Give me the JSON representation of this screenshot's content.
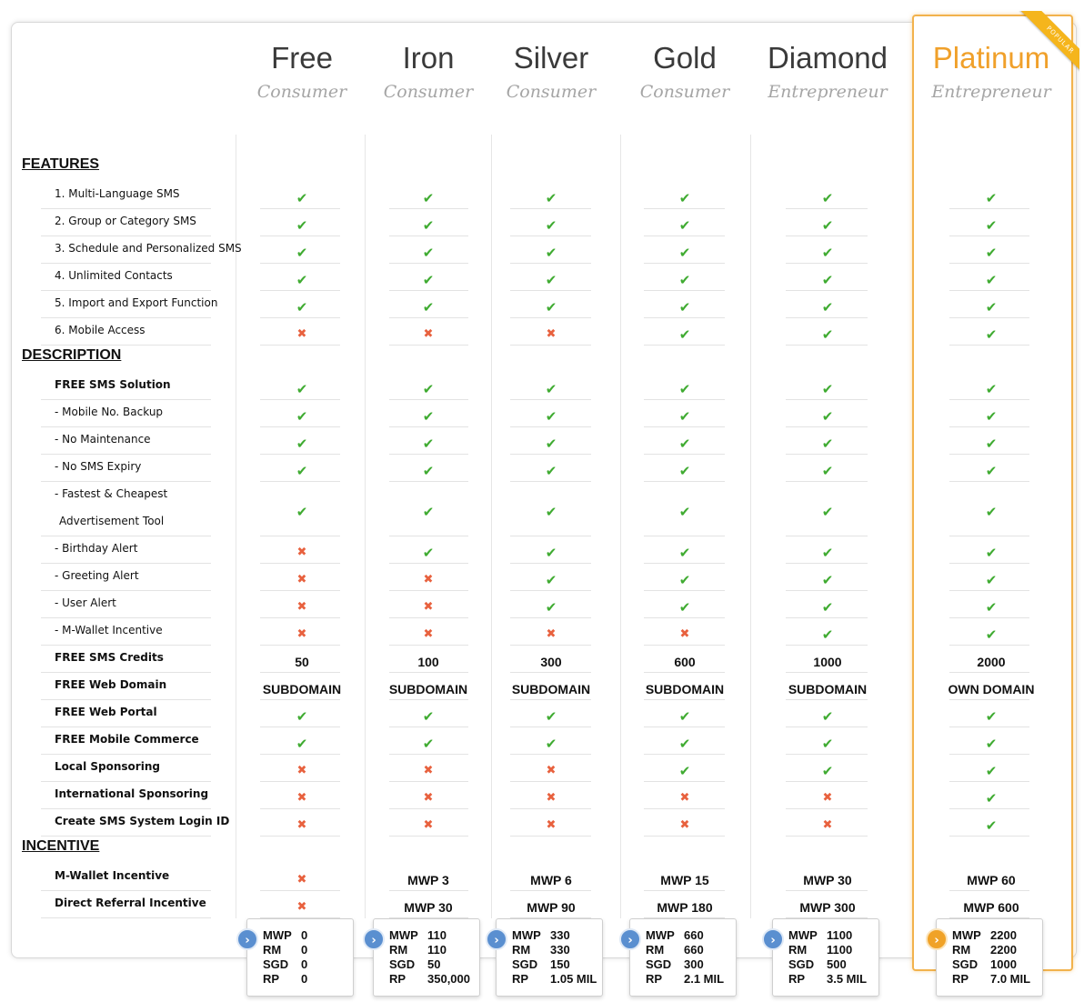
{
  "badge": "POPULAR",
  "plans": [
    {
      "name": "Free",
      "tier": "Consumer",
      "name_color": "#3a3a3a"
    },
    {
      "name": "Iron",
      "tier": "Consumer",
      "name_color": "#3a3a3a"
    },
    {
      "name": "Silver",
      "tier": "Consumer",
      "name_color": "#3a3a3a"
    },
    {
      "name": "Gold",
      "tier": "Consumer",
      "name_color": "#3a3a3a"
    },
    {
      "name": "Diamond",
      "tier": "Entrepreneur",
      "name_color": "#3a3a3a"
    },
    {
      "name": "Platinum",
      "tier": "Entrepreneur",
      "name_color": "#f0a02a"
    }
  ],
  "sections": [
    {
      "title": "FEATURES",
      "rows": [
        {
          "label": "1. Multi-Language SMS",
          "bold": false,
          "values": [
            "yes",
            "yes",
            "yes",
            "yes",
            "yes",
            "yes"
          ]
        },
        {
          "label": "2. Group or Category SMS",
          "bold": false,
          "values": [
            "yes",
            "yes",
            "yes",
            "yes",
            "yes",
            "yes"
          ]
        },
        {
          "label": "3. Schedule and Personalized SMS",
          "bold": false,
          "values": [
            "yes",
            "yes",
            "yes",
            "yes",
            "yes",
            "yes"
          ]
        },
        {
          "label": "4. Unlimited Contacts",
          "bold": false,
          "values": [
            "yes",
            "yes",
            "yes",
            "yes",
            "yes",
            "yes"
          ]
        },
        {
          "label": "5. Import and Export Function",
          "bold": false,
          "values": [
            "yes",
            "yes",
            "yes",
            "yes",
            "yes",
            "yes"
          ]
        },
        {
          "label": "6. Mobile Access",
          "bold": false,
          "values": [
            "no",
            "no",
            "no",
            "yes",
            "yes",
            "yes"
          ]
        }
      ]
    },
    {
      "title": "DESCRIPTION",
      "rows": [
        {
          "label": "FREE SMS Solution",
          "bold": true,
          "values": [
            "yes",
            "yes",
            "yes",
            "yes",
            "yes",
            "yes"
          ]
        },
        {
          "label": "- Mobile No. Backup",
          "bold": false,
          "values": [
            "yes",
            "yes",
            "yes",
            "yes",
            "yes",
            "yes"
          ]
        },
        {
          "label": "- No Maintenance",
          "bold": false,
          "values": [
            "yes",
            "yes",
            "yes",
            "yes",
            "yes",
            "yes"
          ]
        },
        {
          "label": "- No SMS Expiry",
          "bold": false,
          "values": [
            "yes",
            "yes",
            "yes",
            "yes",
            "yes",
            "yes"
          ]
        },
        {
          "label": "- Fastest & Cheapest",
          "label2": "Advertisement Tool",
          "bold": false,
          "values": [
            "yes",
            "yes",
            "yes",
            "yes",
            "yes",
            "yes"
          ]
        },
        {
          "label": "- Birthday Alert",
          "bold": false,
          "values": [
            "no",
            "yes",
            "yes",
            "yes",
            "yes",
            "yes"
          ]
        },
        {
          "label": "- Greeting Alert",
          "bold": false,
          "values": [
            "no",
            "no",
            "yes",
            "yes",
            "yes",
            "yes"
          ]
        },
        {
          "label": "- User Alert",
          "bold": false,
          "values": [
            "no",
            "no",
            "yes",
            "yes",
            "yes",
            "yes"
          ]
        },
        {
          "label": "- M-Wallet Incentive",
          "bold": false,
          "values": [
            "no",
            "no",
            "no",
            "no",
            "yes",
            "yes"
          ]
        },
        {
          "label": "FREE SMS Credits",
          "bold": true,
          "values": [
            "50",
            "100",
            "300",
            "600",
            "1000",
            "2000"
          ]
        },
        {
          "label": "FREE Web Domain",
          "bold": true,
          "values": [
            "SUBDOMAIN",
            "SUBDOMAIN",
            "SUBDOMAIN",
            "SUBDOMAIN",
            "SUBDOMAIN",
            "OWN DOMAIN"
          ]
        },
        {
          "label": "FREE Web Portal",
          "bold": true,
          "values": [
            "yes",
            "yes",
            "yes",
            "yes",
            "yes",
            "yes"
          ]
        },
        {
          "label": "FREE Mobile Commerce",
          "bold": true,
          "values": [
            "yes",
            "yes",
            "yes",
            "yes",
            "yes",
            "yes"
          ]
        },
        {
          "label": "Local Sponsoring",
          "bold": true,
          "values": [
            "no",
            "no",
            "no",
            "yes",
            "yes",
            "yes"
          ]
        },
        {
          "label": "International Sponsoring",
          "bold": true,
          "values": [
            "no",
            "no",
            "no",
            "no",
            "no",
            "yes"
          ]
        },
        {
          "label": "Create SMS System  Login ID",
          "bold": true,
          "values": [
            "no",
            "no",
            "no",
            "no",
            "no",
            "yes"
          ]
        }
      ]
    },
    {
      "title": "INCENTIVE",
      "rows": [
        {
          "label": "M-Wallet Incentive",
          "bold": true,
          "values": [
            "no",
            "MWP 3",
            "MWP 6",
            "MWP 15",
            "MWP 30",
            "MWP 60"
          ]
        },
        {
          "label": "Direct Referral Incentive",
          "bold": true,
          "values": [
            "no",
            "MWP 30",
            "MWP 90",
            "MWP 180",
            "MWP 300",
            "MWP 600"
          ]
        }
      ]
    }
  ],
  "prices": [
    [
      {
        "cur": "MWP",
        "val": "0"
      },
      {
        "cur": "RM",
        "val": "0"
      },
      {
        "cur": "SGD",
        "val": "0"
      },
      {
        "cur": "RP",
        "val": "0"
      }
    ],
    [
      {
        "cur": "MWP",
        "val": "110"
      },
      {
        "cur": "RM",
        "val": "110"
      },
      {
        "cur": "SGD",
        "val": "50"
      },
      {
        "cur": "RP",
        "val": "350,000"
      }
    ],
    [
      {
        "cur": "MWP",
        "val": "330"
      },
      {
        "cur": "RM",
        "val": "330"
      },
      {
        "cur": "SGD",
        "val": "150"
      },
      {
        "cur": "RP",
        "val": "1.05 MIL"
      }
    ],
    [
      {
        "cur": "MWP",
        "val": "660"
      },
      {
        "cur": "RM",
        "val": "660"
      },
      {
        "cur": "SGD",
        "val": "300"
      },
      {
        "cur": "RP",
        "val": "2.1 MIL"
      }
    ],
    [
      {
        "cur": "MWP",
        "val": "1100"
      },
      {
        "cur": "RM",
        "val": "1100"
      },
      {
        "cur": "SGD",
        "val": "500"
      },
      {
        "cur": "RP",
        "val": "3.5 MIL"
      }
    ],
    [
      {
        "cur": "MWP",
        "val": "2200"
      },
      {
        "cur": "RM",
        "val": "2200"
      },
      {
        "cur": "SGD",
        "val": "1000"
      },
      {
        "cur": "RP",
        "val": "7.0 MIL"
      }
    ]
  ],
  "icons": {
    "yes": "check-icon",
    "no": "cross-icon",
    "arrow": "chevron-right-icon"
  },
  "colors": {
    "check": "#3fab31",
    "cross": "#e8613e",
    "highlight": "#f2b24c",
    "arrow": "#5a8fd0"
  }
}
